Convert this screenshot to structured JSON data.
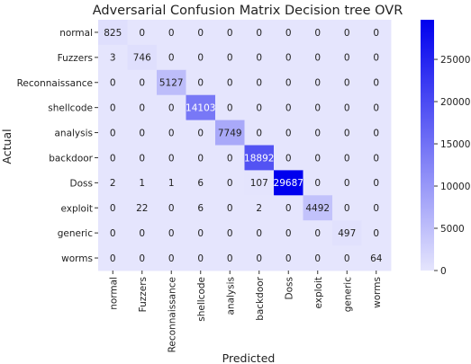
{
  "chart_data": {
    "type": "heatmap",
    "title": "Adversarial Confusion Matrix Decision tree OVR",
    "xlabel": "Predicted",
    "ylabel": "Actual",
    "x_categories": [
      "normal",
      "Fuzzers",
      "Reconnaissance",
      "shellcode",
      "analysis",
      "backdoor",
      "Doss",
      "exploit",
      "generic",
      "worms"
    ],
    "y_categories": [
      "normal",
      "Fuzzers",
      "Reconnaissance",
      "shellcode",
      "analysis",
      "backdoor",
      "Doss",
      "exploit",
      "generic",
      "worms"
    ],
    "values": [
      [
        825,
        0,
        0,
        0,
        0,
        0,
        0,
        0,
        0,
        0
      ],
      [
        3,
        746,
        0,
        0,
        0,
        0,
        0,
        0,
        0,
        0
      ],
      [
        0,
        0,
        5127,
        0,
        0,
        0,
        0,
        0,
        0,
        0
      ],
      [
        0,
        0,
        0,
        14103,
        0,
        0,
        0,
        0,
        0,
        0
      ],
      [
        0,
        0,
        0,
        0,
        7749,
        0,
        0,
        0,
        0,
        0
      ],
      [
        0,
        0,
        0,
        0,
        0,
        18892,
        0,
        0,
        0,
        0
      ],
      [
        2,
        1,
        1,
        6,
        0,
        107,
        29687,
        0,
        0,
        0
      ],
      [
        0,
        22,
        0,
        6,
        0,
        2,
        0,
        4492,
        0,
        0
      ],
      [
        0,
        0,
        0,
        0,
        0,
        0,
        0,
        0,
        497,
        0
      ],
      [
        0,
        0,
        0,
        0,
        0,
        0,
        0,
        0,
        0,
        64
      ]
    ],
    "colorbar": {
      "min": 0,
      "max": 29687,
      "ticks": [
        0,
        5000,
        10000,
        15000,
        20000,
        25000
      ],
      "tick_labels": [
        "0",
        "5000",
        "10000",
        "15000",
        "20000",
        "25000"
      ],
      "color_low": "#e5e5fd",
      "color_high": "#0000ee"
    }
  }
}
